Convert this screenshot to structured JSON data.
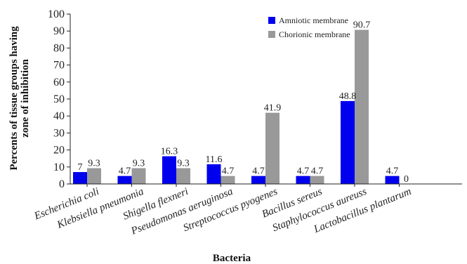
{
  "chart_data": {
    "type": "bar",
    "xlabel": "Bacteria",
    "ylabel_line1": "Percents of tissue groups having",
    "ylabel_line2": "zone of inhibition",
    "ylim": [
      0,
      100
    ],
    "yticks": [
      0,
      10,
      20,
      30,
      40,
      50,
      60,
      70,
      80,
      90,
      100
    ],
    "grid": false,
    "legend_position": "top-right",
    "categories": [
      "Escherichia coli",
      "Klebsiella pneumonia",
      "Shigella flexneri",
      "Pseudomonas aeruginosa",
      "Streptococcus pyogenes",
      "Bacillus sereus",
      "Staphylococcus aureuss",
      "Lactobacillus plantarum"
    ],
    "series": [
      {
        "name": "Amniotic membrane",
        "color": "#0000ee",
        "values": [
          7,
          4.7,
          16.3,
          11.6,
          4.7,
          4.7,
          48.8,
          4.7
        ]
      },
      {
        "name": "Chorionic membrane",
        "color": "#999999",
        "values": [
          9.3,
          9.3,
          9.3,
          4.7,
          41.9,
          4.7,
          90.7,
          0
        ]
      }
    ]
  }
}
